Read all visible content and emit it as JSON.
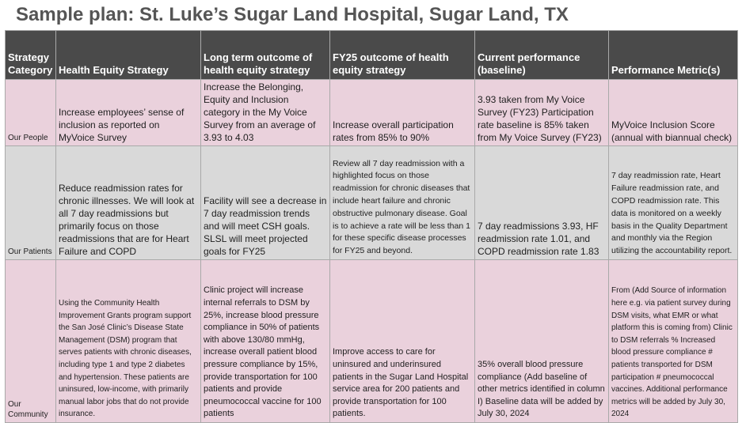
{
  "title": "Sample plan: St. Luke’s Sugar Land Hospital, Sugar Land, TX",
  "table": {
    "headers": [
      "Strategy Category",
      "Health Equity Strategy",
      "Long term outcome of health equity strategy",
      "FY25 outcome of health equity strategy",
      "Current performance (baseline)",
      "Performance Metric(s)"
    ],
    "rows": [
      {
        "category": "Our People",
        "strategy": "Increase employees’ sense of inclusion as reported on MyVoice Survey",
        "long_term": "Increase the Belonging, Equity and Inclusion category in the My Voice Survey from an average of 3.93 to 4.03",
        "fy25": "Increase overall participation rates from 85% to 90%",
        "baseline": "3.93 taken from My Voice Survey (FY23) Participation rate baseline is 85% taken from My Voice Survey (FY23)",
        "metric": "MyVoice Inclusion Score (annual with biannual check)"
      },
      {
        "category": "Our Patients",
        "strategy": "Reduce readmission rates for chronic illnesses. We will look at all 7 day readmissions but primarily focus on those readmissions that are for Heart Failure and COPD",
        "long_term": "Facility will see a decrease in 7 day readmission trends and will meet CSH goals. SLSL will meet projected goals for FY25",
        "fy25": "Review all 7 day readmission with a highlighted focus on those readmission for chronic diseases that include heart failure and chronic obstructive pulmonary disease. Goal is to achieve a rate will be less than 1 for these specific disease processes for FY25 and beyond.",
        "baseline": "7 day readmissions 3.93, HF readmission rate 1.01, and COPD readmission rate 1.83",
        "metric": "7 day readmission rate, Heart Failure readmission rate, and COPD readmission rate. This data is monitored on a weekly basis in the Quality Department and monthly via the Region utilizing the accountability report."
      },
      {
        "category": "Our Community",
        "strategy": "Using the Community Health Improvement Grants program support the San José Clinic’s Disease State Management (DSM) program that serves patients with chronic diseases, including type 1 and type 2 diabetes and hypertension. These patients are uninsured, low-income, with primarily manual labor jobs that do not provide insurance.",
        "long_term": "Clinic project will increase internal referrals to  DSM by 25%,  increase blood pressure compliance in 50% of patients with above 130/80 mmHg, increase overall patient blood pressure compliance by 15%, provide transportation for 100 patients and provide pneumococcal vaccine for 100 patients",
        "fy25": "Improve access to care for uninsured and underinsured patients in the Sugar Land Hospital service area for 200 patients and provide transportation for 100 patients.",
        "baseline": "35% overall blood pressure compliance (Add baseline of other metrics identified in column I)  Baseline data will be added by July 30, 2024",
        "metric": "From (Add Source of information here e.g. via patient survey during DSM visits, what EMR or what platform this is coming from) Clinic to DSM referrals % Increased blood pressure compliance # patients transported for DSM participation # pneumococcal vaccines. Additional performance metrics will be added by July 30, 2024"
      }
    ]
  }
}
